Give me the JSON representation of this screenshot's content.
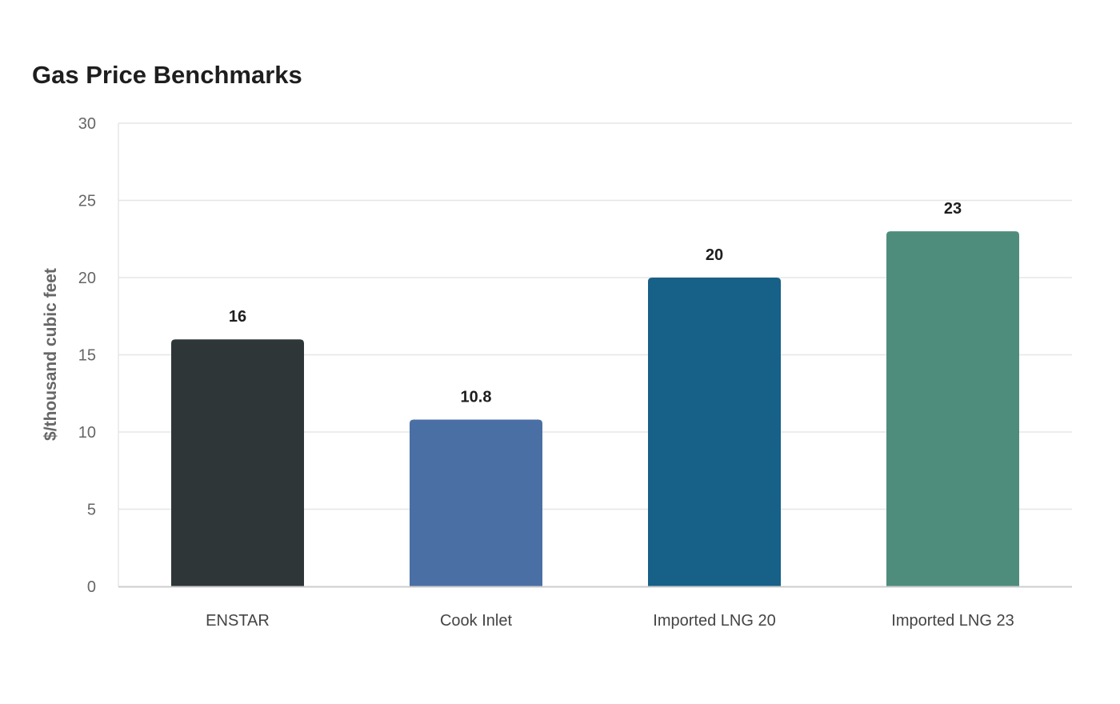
{
  "chart_data": {
    "type": "bar",
    "title": "Gas Price Benchmarks",
    "xlabel": "",
    "ylabel": "$/thousand cubic feet",
    "categories": [
      "ENSTAR",
      "Cook Inlet",
      "Imported LNG 20",
      "Imported LNG 23"
    ],
    "values": [
      16,
      10.8,
      20,
      23
    ],
    "value_labels": [
      "16",
      "10.8",
      "20",
      "23"
    ],
    "colors": [
      "#2e3638",
      "#4a6fa5",
      "#176087",
      "#4e8d7c"
    ],
    "ylim": [
      0,
      30
    ],
    "yticks": [
      0,
      5,
      10,
      15,
      20,
      25,
      30
    ],
    "grid": true,
    "legend": "none"
  }
}
